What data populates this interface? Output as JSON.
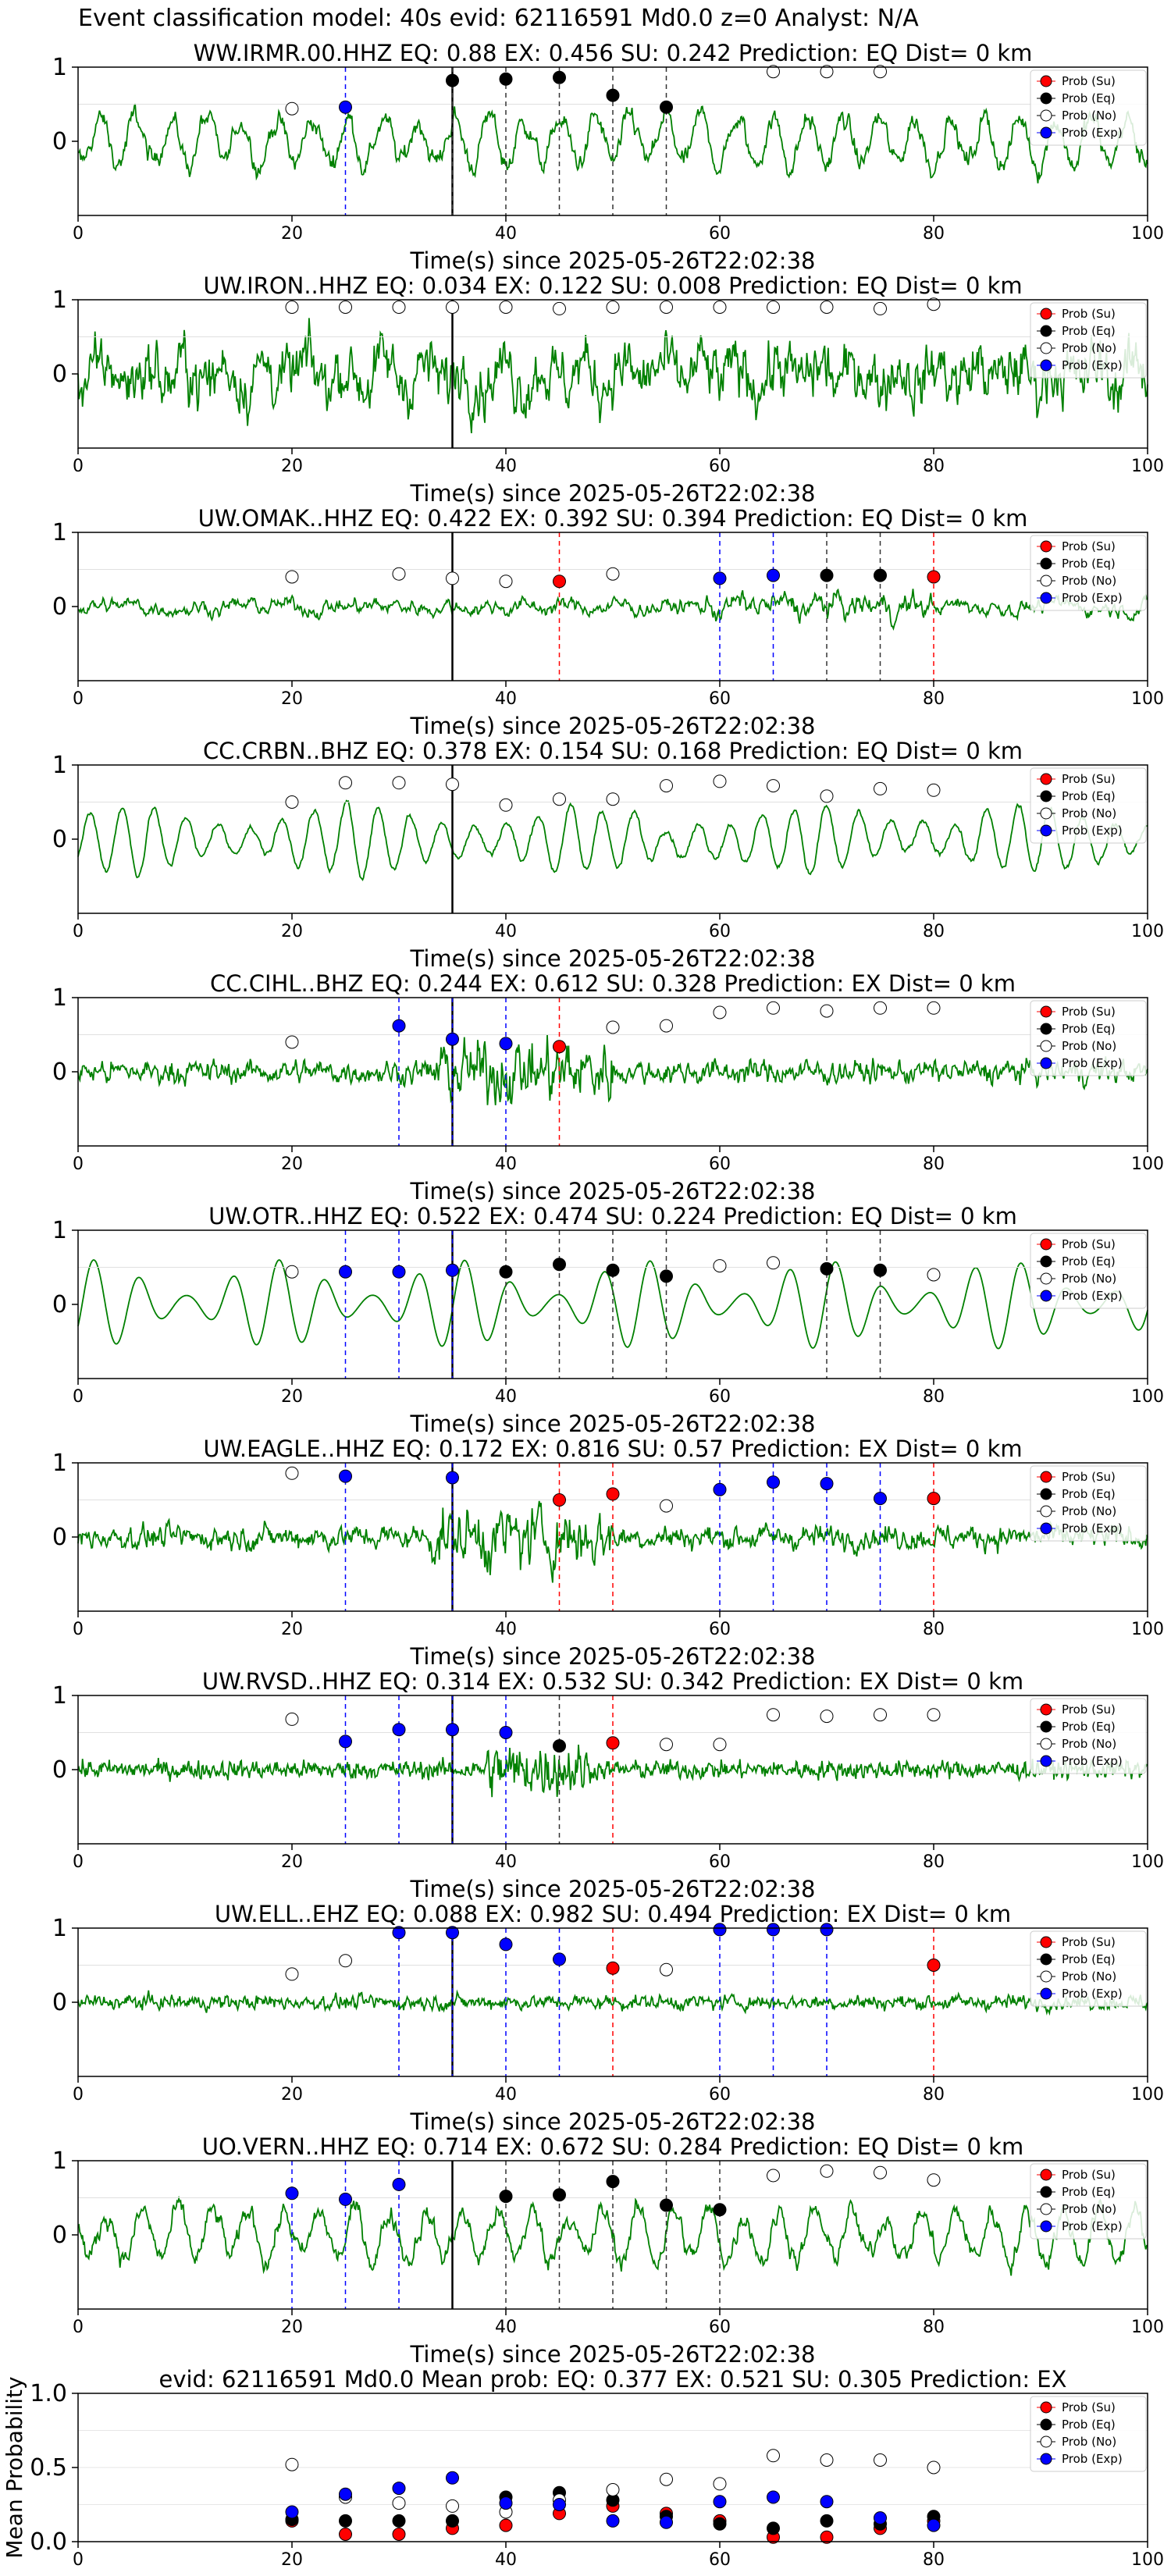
{
  "figure": {
    "title": "Event classification model: 40s evid: 62116591 Md0.0 z=0 Analyst: N/A"
  },
  "legend_labels": [
    "Prob (Su)",
    "Prob (Eq)",
    "Prob (No)",
    "Prob (Exp)"
  ],
  "colors": {
    "waveform": "#008000",
    "su": "#ff0000",
    "eq": "#000000",
    "no": "#ffffff",
    "exp": "#0000ff",
    "origin_line": "#000000"
  },
  "chart_data": [
    {
      "type": "line",
      "title": "WW.IRMR.00.HHZ   EQ: 0.88  EX: 0.456  SU: 0.242   Prediction: EQ    Dist= 0 km",
      "xlabel": "Time(s) since 2025-05-26T22:02:38",
      "ylabel": "",
      "xlim": [
        0,
        100
      ],
      "ylim": [
        -1,
        1
      ],
      "xticks": [
        "0",
        "20",
        "40",
        "60",
        "80",
        "100"
      ],
      "yticks": [
        "0",
        "1"
      ],
      "origin_line_x": 35,
      "waveform_style": "medium",
      "markers": {
        "su": [],
        "eq": [
          [
            35,
            0.82
          ],
          [
            40,
            0.84
          ],
          [
            45,
            0.86
          ],
          [
            50,
            0.62
          ],
          [
            55,
            0.46
          ]
        ],
        "no": [
          [
            20,
            0.44
          ],
          [
            65,
            0.94
          ],
          [
            70,
            0.94
          ],
          [
            75,
            0.94
          ]
        ],
        "exp": [
          [
            25,
            0.46
          ]
        ]
      }
    },
    {
      "type": "line",
      "title": "UW.IRON..HHZ   EQ: 0.034  EX: 0.122  SU: 0.008   Prediction: EQ    Dist= 0 km",
      "xlabel": "Time(s) since 2025-05-26T22:02:38",
      "ylabel": "",
      "xlim": [
        0,
        100
      ],
      "ylim": [
        -1,
        1
      ],
      "xticks": [
        "0",
        "20",
        "40",
        "60",
        "80",
        "100"
      ],
      "yticks": [
        "0",
        "1"
      ],
      "origin_line_x": 35,
      "waveform_style": "noisy",
      "markers": {
        "su": [],
        "eq": [],
        "no": [
          [
            20,
            0.9
          ],
          [
            25,
            0.9
          ],
          [
            30,
            0.9
          ],
          [
            35,
            0.9
          ],
          [
            40,
            0.9
          ],
          [
            45,
            0.88
          ],
          [
            50,
            0.9
          ],
          [
            55,
            0.9
          ],
          [
            60,
            0.9
          ],
          [
            65,
            0.9
          ],
          [
            70,
            0.9
          ],
          [
            75,
            0.88
          ],
          [
            80,
            0.94
          ]
        ],
        "exp": []
      }
    },
    {
      "type": "line",
      "title": "UW.OMAK..HHZ   EQ: 0.422  EX: 0.392  SU: 0.394   Prediction: EQ    Dist= 0 km",
      "xlabel": "Time(s) since 2025-05-26T22:02:38",
      "ylabel": "",
      "xlim": [
        0,
        100
      ],
      "ylim": [
        -1,
        1
      ],
      "xticks": [
        "0",
        "20",
        "40",
        "60",
        "80",
        "100"
      ],
      "yticks": [
        "0",
        "1"
      ],
      "origin_line_x": 35,
      "waveform_style": "quiet",
      "markers": {
        "su": [
          [
            45,
            0.34
          ],
          [
            80,
            0.4
          ]
        ],
        "eq": [
          [
            70,
            0.42
          ],
          [
            75,
            0.42
          ]
        ],
        "no": [
          [
            20,
            0.4
          ],
          [
            30,
            0.44
          ],
          [
            35,
            0.38
          ],
          [
            40,
            0.34
          ],
          [
            50,
            0.44
          ]
        ],
        "exp": [
          [
            60,
            0.38
          ],
          [
            65,
            0.42
          ]
        ]
      }
    },
    {
      "type": "line",
      "title": "CC.CRBN..BHZ   EQ: 0.378  EX: 0.154  SU: 0.168   Prediction: EQ    Dist= 0 km",
      "xlabel": "Time(s) since 2025-05-26T22:02:38",
      "ylabel": "",
      "xlim": [
        0,
        100
      ],
      "ylim": [
        -1,
        1
      ],
      "xticks": [
        "0",
        "20",
        "40",
        "60",
        "80",
        "100"
      ],
      "yticks": [
        "0",
        "1"
      ],
      "origin_line_x": 35,
      "waveform_style": "lowfreq",
      "markers": {
        "su": [],
        "eq": [],
        "no": [
          [
            20,
            0.5
          ],
          [
            25,
            0.76
          ],
          [
            30,
            0.76
          ],
          [
            35,
            0.74
          ],
          [
            40,
            0.46
          ],
          [
            45,
            0.54
          ],
          [
            50,
            0.54
          ],
          [
            55,
            0.72
          ],
          [
            60,
            0.78
          ],
          [
            65,
            0.72
          ],
          [
            70,
            0.58
          ],
          [
            75,
            0.68
          ],
          [
            80,
            0.66
          ]
        ],
        "exp": []
      }
    },
    {
      "type": "line",
      "title": "CC.CIHL..BHZ   EQ: 0.244  EX: 0.612  SU: 0.328   Prediction: EX    Dist= 0 km",
      "xlabel": "Time(s) since 2025-05-26T22:02:38",
      "ylabel": "",
      "xlim": [
        0,
        100
      ],
      "ylim": [
        -1,
        1
      ],
      "xticks": [
        "0",
        "20",
        "40",
        "60",
        "80",
        "100"
      ],
      "yticks": [
        "0",
        "1"
      ],
      "origin_line_x": 35,
      "waveform_style": "burst",
      "markers": {
        "su": [
          [
            45,
            0.34
          ]
        ],
        "eq": [],
        "no": [
          [
            20,
            0.4
          ],
          [
            50,
            0.6
          ],
          [
            55,
            0.62
          ],
          [
            60,
            0.8
          ],
          [
            65,
            0.86
          ],
          [
            70,
            0.82
          ],
          [
            75,
            0.86
          ],
          [
            80,
            0.86
          ]
        ],
        "exp": [
          [
            30,
            0.62
          ],
          [
            35,
            0.44
          ],
          [
            40,
            0.38
          ]
        ]
      }
    },
    {
      "type": "line",
      "title": "UW.OTR..HHZ   EQ: 0.522  EX: 0.474  SU: 0.224   Prediction: EQ    Dist= 0 km",
      "xlabel": "Time(s) since 2025-05-26T22:02:38",
      "ylabel": "",
      "xlim": [
        0,
        100
      ],
      "ylim": [
        -1,
        1
      ],
      "xticks": [
        "0",
        "20",
        "40",
        "60",
        "80",
        "100"
      ],
      "yticks": [
        "0",
        "1"
      ],
      "origin_line_x": 35,
      "waveform_style": "smooth",
      "markers": {
        "su": [],
        "eq": [
          [
            40,
            0.44
          ],
          [
            45,
            0.54
          ],
          [
            50,
            0.46
          ],
          [
            55,
            0.38
          ],
          [
            70,
            0.48
          ],
          [
            75,
            0.46
          ]
        ],
        "no": [
          [
            20,
            0.44
          ],
          [
            60,
            0.52
          ],
          [
            65,
            0.56
          ],
          [
            80,
            0.4
          ]
        ],
        "exp": [
          [
            25,
            0.44
          ],
          [
            30,
            0.44
          ],
          [
            35,
            0.46
          ]
        ]
      }
    },
    {
      "type": "line",
      "title": "UW.EAGLE..HHZ   EQ: 0.172  EX: 0.816  SU: 0.57   Prediction: EX    Dist= 0 km",
      "xlabel": "Time(s) since 2025-05-26T22:02:38",
      "ylabel": "",
      "xlim": [
        0,
        100
      ],
      "ylim": [
        -1,
        1
      ],
      "xticks": [
        "0",
        "20",
        "40",
        "60",
        "80",
        "100"
      ],
      "yticks": [
        "0",
        "1"
      ],
      "origin_line_x": 35,
      "waveform_style": "burst",
      "markers": {
        "su": [
          [
            45,
            0.5
          ],
          [
            50,
            0.58
          ],
          [
            80,
            0.52
          ]
        ],
        "eq": [],
        "no": [
          [
            20,
            0.86
          ],
          [
            55,
            0.42
          ]
        ],
        "exp": [
          [
            25,
            0.82
          ],
          [
            35,
            0.8
          ],
          [
            60,
            0.64
          ],
          [
            65,
            0.74
          ],
          [
            70,
            0.72
          ],
          [
            75,
            0.52
          ]
        ]
      }
    },
    {
      "type": "line",
      "title": "UW.RVSD..HHZ   EQ: 0.314  EX: 0.532  SU: 0.342   Prediction: EX    Dist= 0 km",
      "xlabel": "Time(s) since 2025-05-26T22:02:38",
      "ylabel": "",
      "xlim": [
        0,
        100
      ],
      "ylim": [
        -1,
        1
      ],
      "xticks": [
        "0",
        "20",
        "40",
        "60",
        "80",
        "100"
      ],
      "yticks": [
        "0",
        "1"
      ],
      "origin_line_x": 35,
      "waveform_style": "dense_burst",
      "markers": {
        "su": [
          [
            50,
            0.36
          ]
        ],
        "eq": [
          [
            45,
            0.32
          ]
        ],
        "no": [
          [
            20,
            0.68
          ],
          [
            55,
            0.34
          ],
          [
            60,
            0.34
          ],
          [
            65,
            0.74
          ],
          [
            70,
            0.72
          ],
          [
            75,
            0.74
          ],
          [
            80,
            0.74
          ]
        ],
        "exp": [
          [
            25,
            0.38
          ],
          [
            30,
            0.54
          ],
          [
            35,
            0.54
          ],
          [
            40,
            0.5
          ]
        ]
      }
    },
    {
      "type": "line",
      "title": "UW.ELL..EHZ   EQ: 0.088  EX: 0.982  SU: 0.494   Prediction: EX    Dist= 0 km",
      "xlabel": "Time(s) since 2025-05-26T22:02:38",
      "ylabel": "",
      "xlim": [
        0,
        100
      ],
      "ylim": [
        -1,
        1
      ],
      "xticks": [
        "0",
        "20",
        "40",
        "60",
        "80",
        "100"
      ],
      "yticks": [
        "0",
        "1"
      ],
      "origin_line_x": 35,
      "waveform_style": "quiet_noisy",
      "markers": {
        "su": [
          [
            50,
            0.46
          ],
          [
            80,
            0.5
          ]
        ],
        "eq": [],
        "no": [
          [
            20,
            0.38
          ],
          [
            25,
            0.56
          ],
          [
            55,
            0.44
          ]
        ],
        "exp": [
          [
            30,
            0.94
          ],
          [
            35,
            0.94
          ],
          [
            40,
            0.78
          ],
          [
            45,
            0.58
          ],
          [
            60,
            0.98
          ],
          [
            65,
            0.98
          ],
          [
            70,
            0.98
          ]
        ]
      }
    },
    {
      "type": "line",
      "title": "UO.VERN..HHZ   EQ: 0.714  EX: 0.672  SU: 0.284   Prediction: EQ    Dist= 0 km",
      "xlabel": "Time(s) since 2025-05-26T22:02:38",
      "ylabel": "",
      "xlim": [
        0,
        100
      ],
      "ylim": [
        -1,
        1
      ],
      "xticks": [
        "0",
        "20",
        "40",
        "60",
        "80",
        "100"
      ],
      "yticks": [
        "0",
        "1"
      ],
      "origin_line_x": 35,
      "waveform_style": "medium",
      "markers": {
        "su": [],
        "eq": [
          [
            40,
            0.52
          ],
          [
            45,
            0.54
          ],
          [
            50,
            0.72
          ],
          [
            55,
            0.4
          ],
          [
            60,
            0.34
          ]
        ],
        "no": [
          [
            65,
            0.8
          ],
          [
            70,
            0.86
          ],
          [
            75,
            0.84
          ],
          [
            80,
            0.74
          ]
        ],
        "exp": [
          [
            20,
            0.56
          ],
          [
            25,
            0.48
          ],
          [
            30,
            0.68
          ]
        ]
      }
    },
    {
      "type": "scatter",
      "title": "evid: 62116591  Md0.0   Mean prob:   EQ: 0.377  EX: 0.521  SU: 0.305   Prediction: EX",
      "xlabel": "",
      "ylabel": "Mean Probability",
      "xlim": [
        0,
        100
      ],
      "ylim": [
        0,
        1
      ],
      "xticks": [
        "0",
        "20",
        "40",
        "60",
        "80",
        "100"
      ],
      "yticks": [
        "0.0",
        "0.5",
        "1.0"
      ],
      "series": [
        {
          "name": "Prob (Su)",
          "x": [
            20,
            25,
            30,
            35,
            40,
            45,
            50,
            55,
            60,
            65,
            70,
            75,
            80
          ],
          "y": [
            0.14,
            0.05,
            0.05,
            0.09,
            0.11,
            0.19,
            0.24,
            0.19,
            0.14,
            0.03,
            0.03,
            0.09,
            0.14
          ]
        },
        {
          "name": "Prob (Eq)",
          "x": [
            20,
            25,
            30,
            35,
            40,
            45,
            50,
            55,
            60,
            65,
            70,
            75,
            80
          ],
          "y": [
            0.15,
            0.14,
            0.14,
            0.14,
            0.3,
            0.33,
            0.28,
            0.17,
            0.12,
            0.09,
            0.14,
            0.12,
            0.17
          ]
        },
        {
          "name": "Prob (No)",
          "x": [
            20,
            25,
            30,
            35,
            40,
            45,
            50,
            55,
            60,
            65,
            70,
            75,
            80
          ],
          "y": [
            0.52,
            0.3,
            0.26,
            0.24,
            0.2,
            0.28,
            0.35,
            0.42,
            0.39,
            0.58,
            0.55,
            0.55,
            0.5
          ]
        },
        {
          "name": "Prob (Exp)",
          "x": [
            20,
            25,
            30,
            35,
            40,
            45,
            50,
            55,
            60,
            65,
            70,
            75,
            80
          ],
          "y": [
            0.2,
            0.32,
            0.36,
            0.43,
            0.26,
            0.25,
            0.14,
            0.13,
            0.27,
            0.3,
            0.27,
            0.16,
            0.11
          ]
        }
      ]
    }
  ]
}
